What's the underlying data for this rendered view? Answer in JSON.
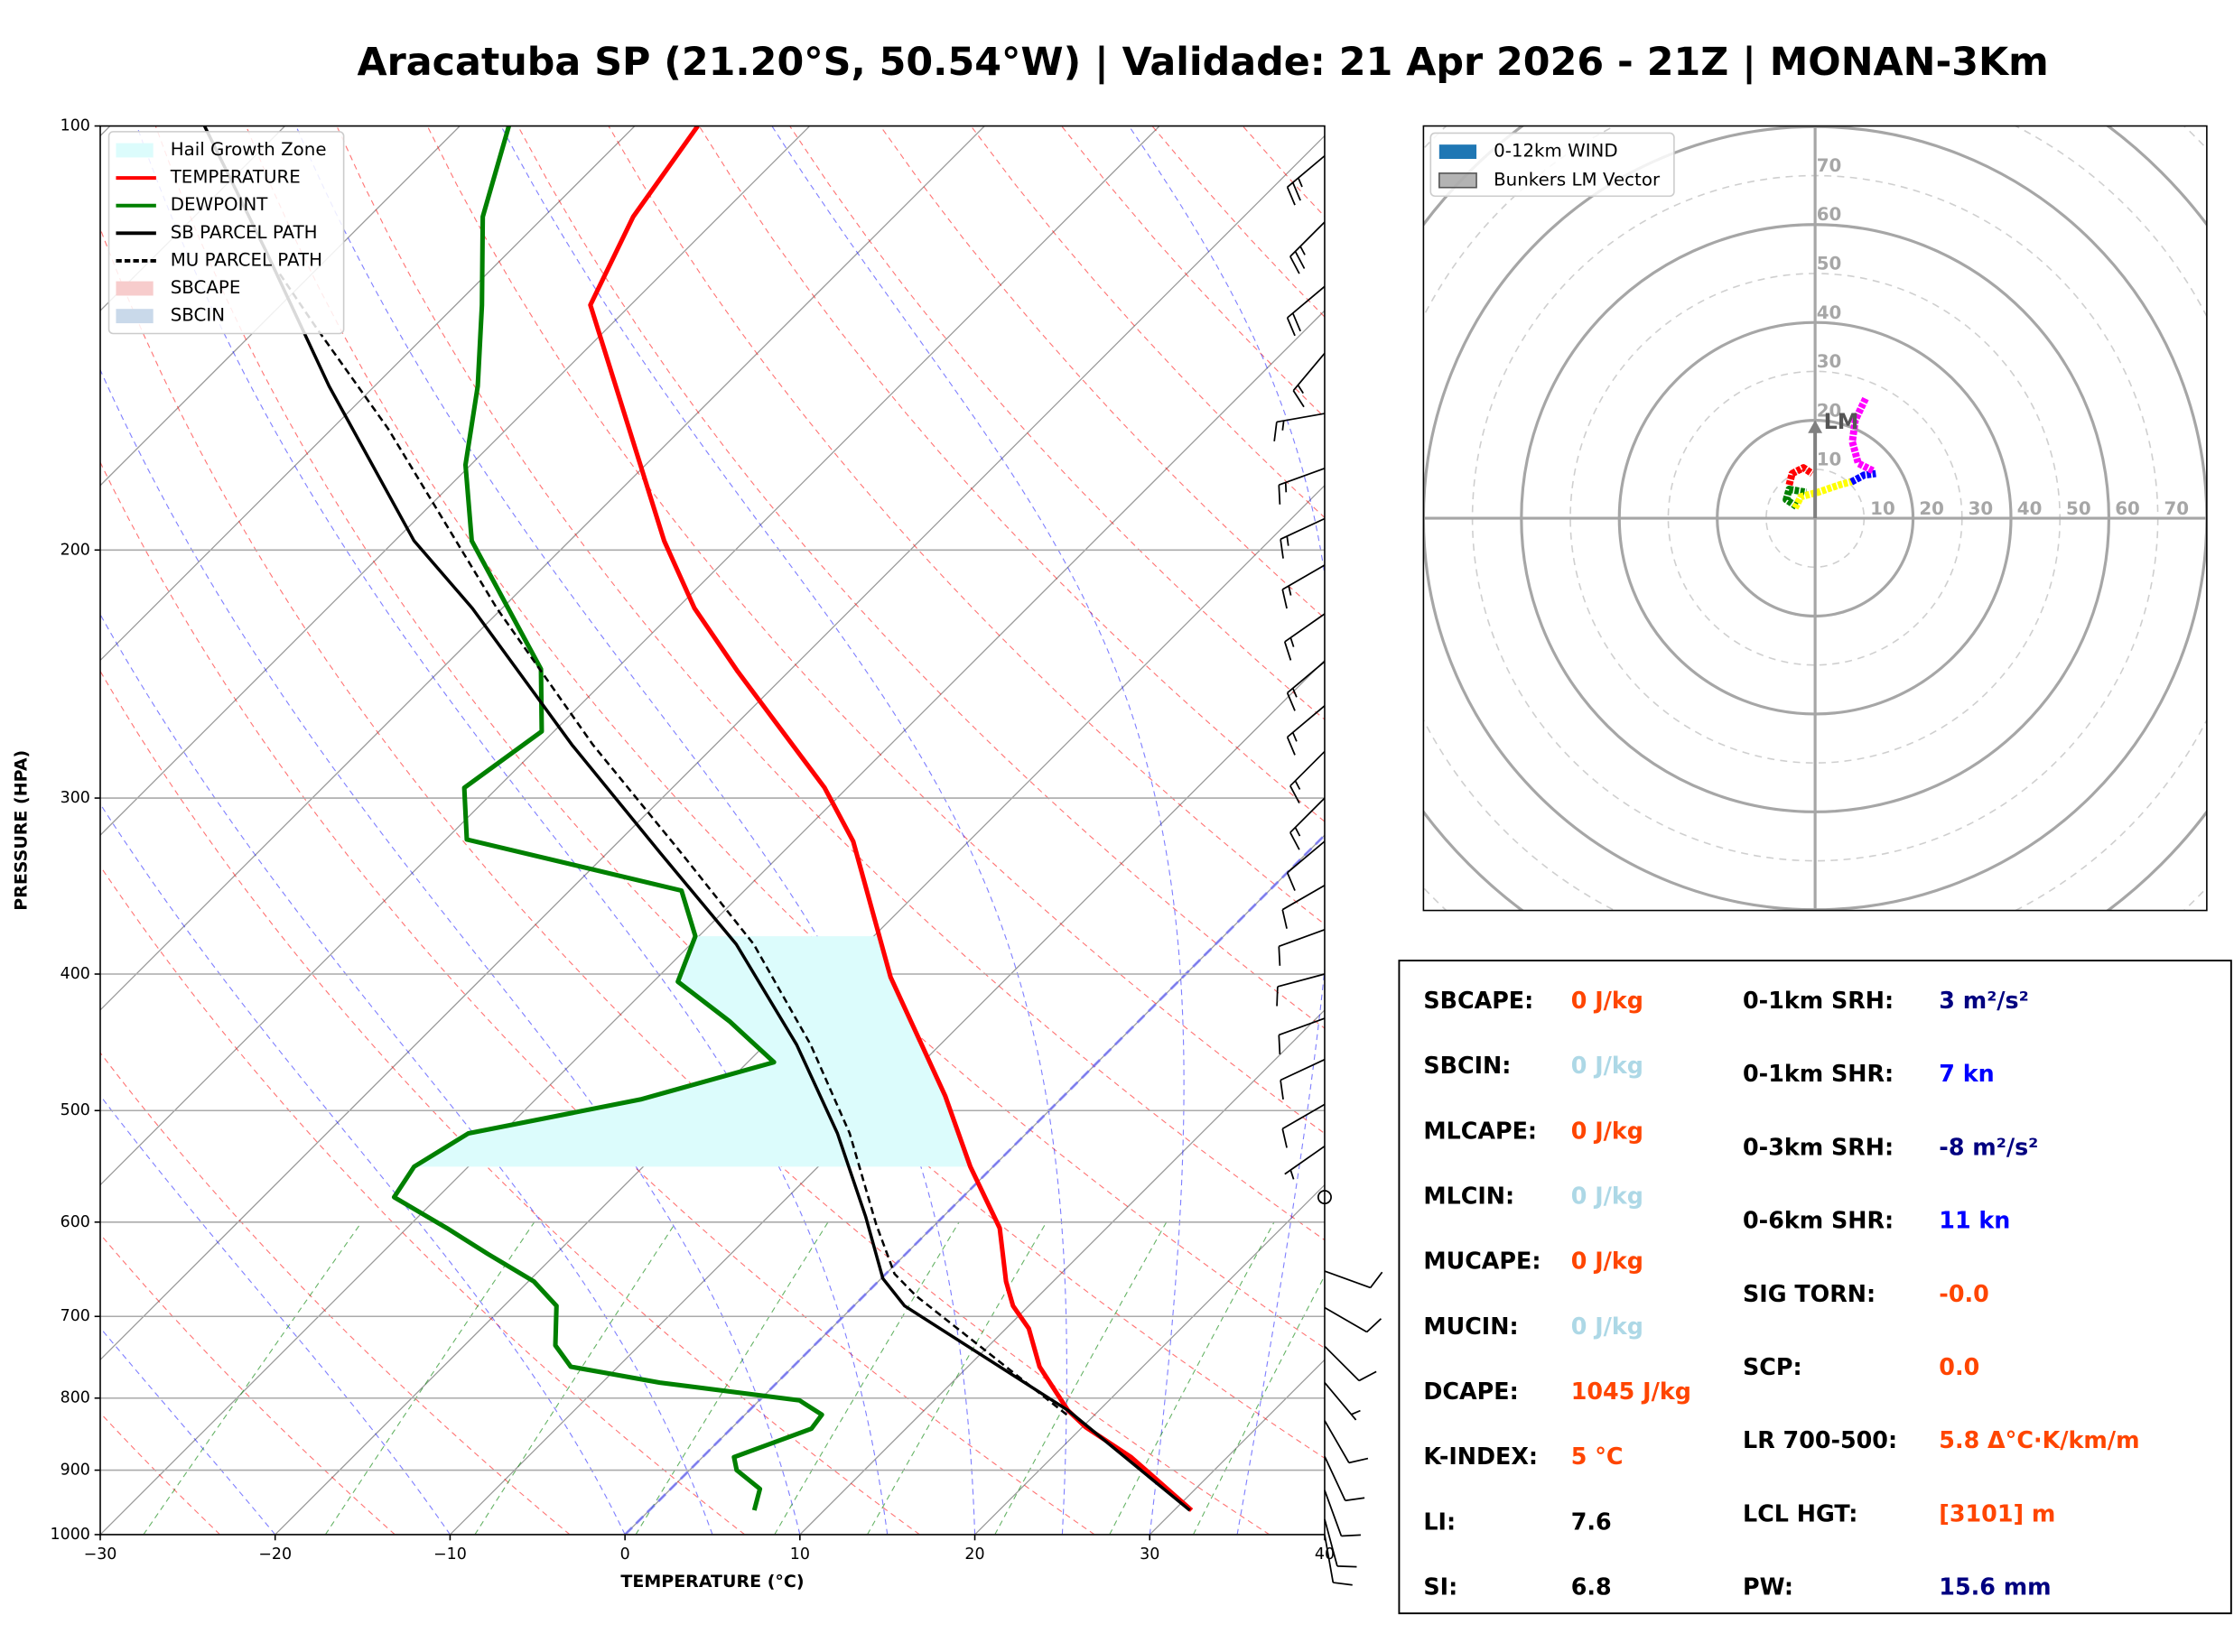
{
  "chart_data": [
    {
      "type": "skewt",
      "title": "Aracatuba SP (21.20°S, 50.54°W) | Validade: 21 Apr 2026 - 21Z | MONAN-3Km",
      "x_label": "TEMPERATURE (°C)",
      "y_label": "PRESSURE (HPA)",
      "xlim": [
        -30,
        40
      ],
      "xticks": [
        {
          "value": -30,
          "label": "−30"
        },
        {
          "value": -20,
          "label": "−20"
        },
        {
          "value": -10,
          "label": "−10"
        },
        0,
        10,
        20,
        30,
        40
      ],
      "ylim": [
        1000,
        100
      ],
      "yticks": [
        100,
        200,
        300,
        400,
        500,
        600,
        700,
        800,
        900,
        1000
      ],
      "log_scale": true,
      "grid": true,
      "legend": "upper left",
      "series": [
        {
          "name": "TEMPERATURE",
          "color": "#ff0000",
          "style": "solid",
          "pressure": [
            961,
            881,
            839,
            816,
            760,
            714,
            688,
            661,
            606,
            548,
            488,
            402,
            322,
            295,
            244,
            220,
            197,
            134,
            116,
            100
          ],
          "values": [
            31.0,
            24.5,
            20.2,
            18.2,
            14.1,
            11.3,
            9.1,
            7.3,
            3.9,
            -1.3,
            -6.8,
            -16.7,
            -26.6,
            -31.3,
            -42.9,
            -49.0,
            -54.6,
            -72.3,
            -74.9,
            -76.4
          ]
        },
        {
          "name": "DEWPOINT",
          "color": "#008000",
          "style": "solid",
          "pressure": [
            961,
            928,
            900,
            881,
            841,
            822,
            803,
            780,
            760,
            734,
            688,
            661,
            632,
            606,
            576,
            548,
            519,
            491,
            462,
            432,
            405,
            376,
            349,
            321,
            295,
            269,
            243,
            197,
            174,
            153,
            134,
            116,
            100
          ],
          "values": [
            6.0,
            5.1,
            2.7,
            1.8,
            4.6,
            4.4,
            2.3,
            -6.7,
            -12.7,
            -14.8,
            -17.0,
            -19.7,
            -23.9,
            -27.7,
            -32.5,
            -33.1,
            -31.9,
            -24.0,
            -18.5,
            -23.4,
            -28.6,
            -30.2,
            -33.6,
            -48.8,
            -51.9,
            -50.7,
            -54.3,
            -65.6,
            -70.3,
            -74.1,
            -78.5,
            -83.5,
            -87.2
          ]
        },
        {
          "name": "SB PARCEL PATH",
          "color": "#000000",
          "style": "solid",
          "pressure": [
            961,
            816,
            688,
            658,
            595,
            519,
            449,
            381,
            328,
            275,
            220,
            197,
            153,
            123,
            100
          ],
          "values": [
            30.9,
            18.2,
            2.9,
            0.1,
            -4.4,
            -10.8,
            -18.2,
            -27.4,
            -37.0,
            -48.2,
            -61.7,
            -68.9,
            -82.6,
            -93.8,
            -104.6
          ]
        },
        {
          "name": "MU PARCEL PATH",
          "color": "#000000",
          "style": "dashed",
          "pressure": [
            822,
            677,
            653,
            602,
            519,
            449,
            381,
            328,
            275,
            220,
            164,
            139,
            127
          ],
          "values": [
            18.4,
            3.0,
            0.5,
            -3.4,
            -10.1,
            -17.4,
            -26.4,
            -35.8,
            -47.0,
            -60.3,
            -76.8,
            -86.7,
            -92.0
          ]
        }
      ],
      "fills": [
        {
          "name": "Hail Growth Zone",
          "color": "#dcfcfc",
          "pressure": [
            548,
            376
          ]
        },
        {
          "name": "SBCAPE",
          "color": "#f7cccc"
        },
        {
          "name": "SBCIN",
          "color": "#c9d9ea"
        }
      ],
      "barbs": {
        "pressure": [
          105,
          117,
          130,
          145,
          160,
          175,
          190,
          205,
          222,
          240,
          258,
          278,
          300,
          322,
          346,
          372,
          400,
          430,
          460,
          495,
          530,
          576,
          650,
          690,
          735,
          780,
          830,
          880,
          930,
          975,
          1000
        ],
        "direction": [
          230,
          225,
          230,
          220,
          260,
          250,
          245,
          240,
          235,
          230,
          230,
          225,
          225,
          230,
          240,
          250,
          255,
          250,
          245,
          240,
          235,
          0,
          110,
          120,
          135,
          140,
          150,
          155,
          160,
          165,
          170
        ],
        "speed": [
          25,
          25,
          20,
          15,
          15,
          15,
          15,
          15,
          15,
          15,
          15,
          15,
          15,
          10,
          10,
          10,
          10,
          10,
          10,
          10,
          5,
          0,
          10,
          10,
          10,
          5,
          10,
          10,
          10,
          10,
          10
        ]
      }
    },
    {
      "type": "hodograph",
      "xlim": [
        -80,
        80
      ],
      "ylim": [
        -80,
        80
      ],
      "ticks": [
        10,
        20,
        30,
        40,
        50,
        60,
        70
      ],
      "legend_entries": [
        {
          "name": "0-12km WIND",
          "color": "#1f77b4"
        },
        {
          "name": "Bunkers LM Vector",
          "color": "#808080"
        }
      ],
      "series": [
        {
          "color": "#008000",
          "u": [
            -3.8,
            -5.9,
            -5.3,
            -1.8
          ],
          "v": [
            2.4,
            3.8,
            5.9,
            5.3
          ]
        },
        {
          "color": "#ff0000",
          "u": [
            -5.3,
            -4.7,
            -2.4,
            -0.6
          ],
          "v": [
            6.8,
            9.1,
            10.3,
            9.1
          ]
        },
        {
          "color": "#ffff00",
          "u": [
            -4.1,
            -2.9,
            0.6,
            5.0,
            7.9
          ],
          "v": [
            2.1,
            4.4,
            5.3,
            6.8,
            7.6
          ]
        },
        {
          "color": "#0000ff",
          "u": [
            7.4,
            10.0,
            12.4
          ],
          "v": [
            7.4,
            8.8,
            9.1
          ]
        },
        {
          "color": "#ff00ff",
          "u": [
            11.8,
            8.8,
            7.6,
            8.2,
            10.3
          ],
          "v": [
            9.7,
            11.2,
            15.6,
            20.0,
            24.4
          ]
        }
      ],
      "bunkers": {
        "label": "LM",
        "u": 0,
        "v": 20
      }
    }
  ],
  "indices": {
    "left": [
      {
        "label": "SBCAPE:",
        "value": "0 J/kg",
        "color": "#ff4500"
      },
      {
        "label": "SBCIN:",
        "value": "0 J/kg",
        "color": "#add8e6"
      },
      {
        "label": "MLCAPE:",
        "value": "0 J/kg",
        "color": "#ff4500"
      },
      {
        "label": "MLCIN:",
        "value": "0 J/kg",
        "color": "#add8e6"
      },
      {
        "label": "MUCAPE:",
        "value": "0 J/kg",
        "color": "#ff4500"
      },
      {
        "label": "MUCIN:",
        "value": "0 J/kg",
        "color": "#add8e6"
      },
      {
        "label": "DCAPE:",
        "value": "1045 J/kg",
        "color": "#ff4500"
      },
      {
        "label": "K-INDEX:",
        "value": "5 °C",
        "color": "#ff4500"
      },
      {
        "label": "LI:",
        "value": "7.6",
        "color": "#000000"
      },
      {
        "label": "SI:",
        "value": "6.8",
        "color": "#000000"
      }
    ],
    "right": [
      {
        "label": "0-1km SRH:",
        "value": "3 m²/s²",
        "color": "#000080"
      },
      {
        "label": "0-1km SHR:",
        "value": "7 kn",
        "color": "#0000ff"
      },
      {
        "label": "0-3km SRH:",
        "value": "-8 m²/s²",
        "color": "#000080"
      },
      {
        "label": "0-6km SHR:",
        "value": "11 kn",
        "color": "#0000ff"
      },
      {
        "label": "SIG TORN:",
        "value": "-0.0",
        "color": "#ff4500"
      },
      {
        "label": "SCP:",
        "value": "0.0",
        "color": "#ff4500"
      },
      {
        "label": "LR 700-500:",
        "value": "5.8 Δ°C·K/km/m",
        "color": "#ff4500"
      },
      {
        "label": "LCL HGT:",
        "value": "[3101] m",
        "color": "#ff4500"
      },
      {
        "label": "PW:",
        "value": "15.6 mm",
        "color": "#000080"
      }
    ]
  }
}
